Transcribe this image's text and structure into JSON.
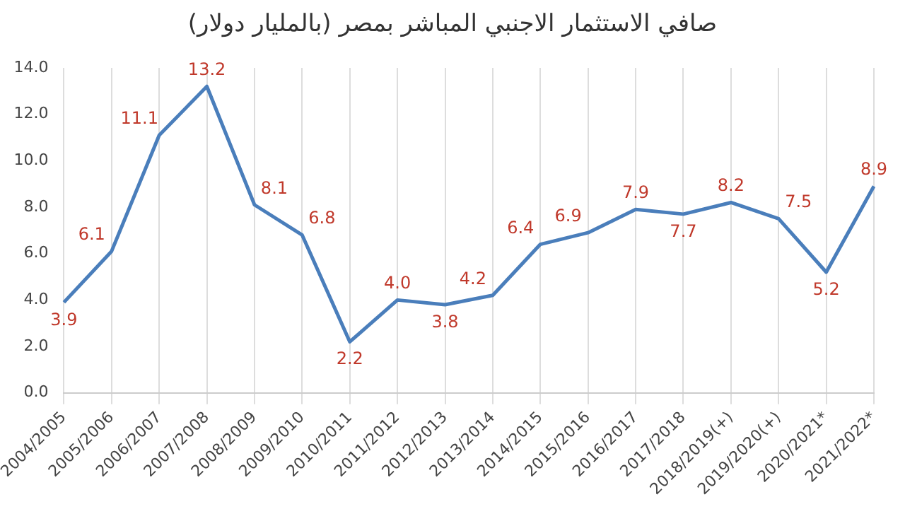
{
  "chart_data": {
    "type": "line",
    "title": "صافي الاستثمار الاجنبي المباشر بمصر (بالمليار دولار)",
    "categories": [
      "2004/2005",
      "2005/2006",
      "2006/2007",
      "2007/2008",
      "2008/2009",
      "2009/2010",
      "2010/2011",
      "2011/2012",
      "2012/2013",
      "2013/2014",
      "2014/2015",
      "2015/2016",
      "2016/2017",
      "2017/2018",
      "2018/2019(+)",
      "2019/2020(+)",
      "2020/2021*",
      "2021/2022*"
    ],
    "series": [
      {
        "color": "#4a7ebb",
        "values": [
          3.9,
          6.1,
          11.1,
          13.2,
          8.1,
          6.8,
          2.2,
          4.0,
          3.8,
          4.2,
          6.4,
          6.9,
          7.9,
          7.7,
          8.2,
          7.5,
          5.2,
          8.9
        ],
        "value_labels": [
          "3.9",
          "6.1",
          "11.1",
          "13.2",
          "8.1",
          "6.8",
          "2.2",
          "4.0",
          "3.8",
          "4.2",
          "6.4",
          "6.9",
          "7.9",
          "7.7",
          "8.2",
          "7.5",
          "5.2",
          "8.9"
        ]
      }
    ],
    "ylim": [
      0,
      14
    ],
    "yticks": [
      {
        "value": 0,
        "label": "0.0"
      },
      {
        "value": 2,
        "label": "2.0"
      },
      {
        "value": 4,
        "label": "4.0"
      },
      {
        "value": 6,
        "label": "6.0"
      },
      {
        "value": 8,
        "label": "8.0"
      },
      {
        "value": 10,
        "label": "10.0"
      },
      {
        "value": 12,
        "label": "12.0"
      },
      {
        "value": 14,
        "label": "14.0"
      }
    ],
    "grid": "x",
    "legend": false,
    "marker": "none",
    "line_style": "solid"
  }
}
